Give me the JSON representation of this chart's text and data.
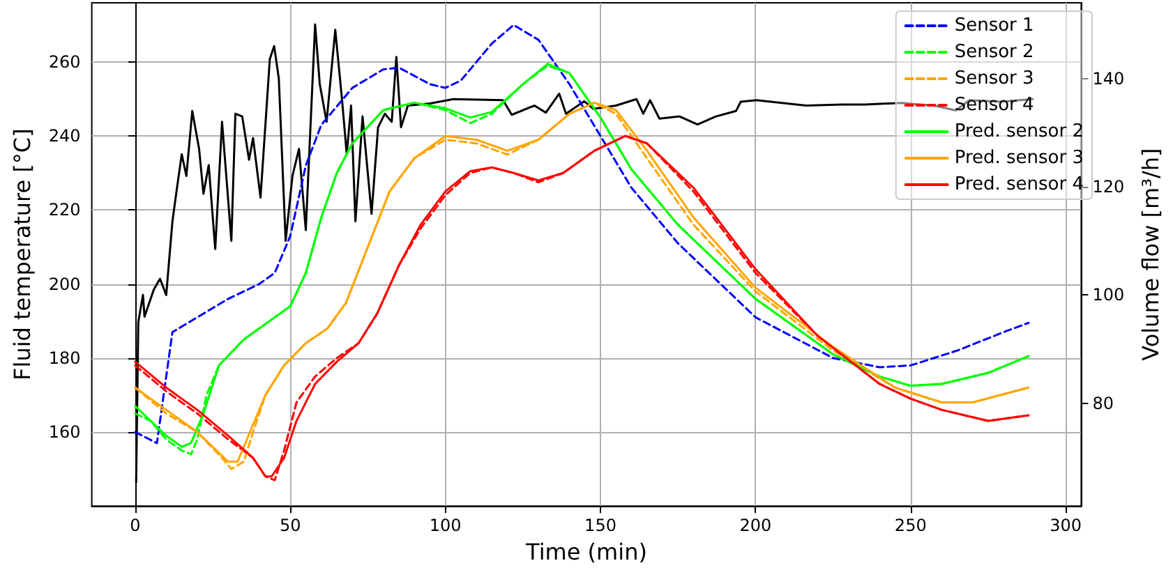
{
  "chart_data": {
    "type": "line",
    "xlabel": "Time (min)",
    "ylabel": "Fluid temperature [°C]",
    "y2label": "Volume flow [m³/h]",
    "xlim": [
      -14,
      305
    ],
    "xticks": [
      0,
      50,
      100,
      150,
      200,
      250,
      300
    ],
    "ylim": [
      140,
      276
    ],
    "yticks": [
      160,
      180,
      200,
      220,
      240,
      260
    ],
    "y2lim": [
      61,
      154
    ],
    "y2ticks": [
      80,
      100,
      120,
      140
    ],
    "grid": true,
    "legend": "top right",
    "series": [
      {
        "name": "Sensor 1",
        "color": "#0000ff",
        "line_style": "dashed",
        "x": [
          0,
          7,
          12,
          20,
          30,
          40,
          45,
          50,
          55,
          60,
          70,
          80,
          85,
          95,
          100,
          105,
          115,
          122,
          130,
          140,
          150,
          160,
          175,
          200,
          225,
          240,
          250,
          265,
          280,
          288
        ],
        "values": [
          160,
          157,
          187,
          191,
          196,
          200,
          203,
          213,
          232,
          243,
          253,
          258,
          258.5,
          254,
          253,
          255,
          265,
          270,
          266,
          254,
          240,
          226,
          211,
          191,
          180,
          177.5,
          178,
          182,
          187,
          189.5
        ]
      },
      {
        "name": "Sensor 2",
        "color": "#00ff00",
        "line_style": "dashed",
        "x": [
          0,
          5,
          10,
          15,
          18,
          20,
          23,
          27,
          35,
          45,
          50,
          55,
          60,
          65,
          70,
          80,
          90,
          100,
          108,
          115,
          125,
          133,
          140,
          150,
          160,
          175,
          200,
          225,
          240,
          250,
          260,
          275,
          288
        ],
        "values": [
          165,
          163,
          158,
          155,
          154,
          158,
          170,
          178,
          185,
          191,
          194,
          203,
          218,
          230,
          238,
          247,
          249,
          247,
          243.5,
          246,
          254,
          259,
          257,
          245,
          231,
          216,
          196,
          181,
          175,
          172.5,
          173,
          176,
          180.5
        ]
      },
      {
        "name": "Sensor 3",
        "color": "#ffa500",
        "line_style": "dashed",
        "x": [
          0,
          10,
          20,
          28,
          31,
          35,
          38,
          42,
          48,
          55,
          62,
          68,
          75,
          82,
          90,
          100,
          110,
          120,
          130,
          140,
          148,
          155,
          165,
          180,
          200,
          225,
          245,
          260,
          270,
          288
        ],
        "values": [
          172,
          165,
          160,
          153,
          150,
          152,
          160,
          170,
          178,
          184,
          188,
          195,
          210,
          225,
          234,
          239,
          238,
          235,
          239,
          246,
          249,
          246,
          234,
          216,
          198,
          182,
          172,
          168,
          168,
          172
        ]
      },
      {
        "name": "Sensor 4",
        "color": "#ff0000",
        "line_style": "dashed",
        "x": [
          0,
          10,
          20,
          30,
          38,
          42,
          45,
          48,
          52,
          58,
          65,
          72,
          78,
          85,
          92,
          100,
          108,
          115,
          122,
          130,
          138,
          148,
          158,
          165,
          180,
          200,
          220,
          240,
          250,
          260,
          275,
          288
        ],
        "values": [
          178,
          171,
          165,
          158,
          153,
          148,
          147,
          155,
          168,
          175,
          180,
          184,
          192,
          205,
          215,
          224,
          230,
          231.5,
          230,
          227.5,
          230,
          236,
          240,
          238,
          225,
          203,
          186,
          173,
          169,
          166,
          163,
          164.5
        ]
      },
      {
        "name": "Pred. sensor 2",
        "color": "#00ff00",
        "line_style": "solid",
        "x": [
          0,
          5,
          10,
          15,
          18,
          22,
          27,
          35,
          45,
          50,
          55,
          60,
          65,
          70,
          80,
          90,
          100,
          108,
          115,
          125,
          133,
          140,
          150,
          160,
          175,
          200,
          225,
          240,
          250,
          260,
          275,
          288
        ],
        "values": [
          167,
          163,
          159,
          156,
          157,
          165,
          178,
          185,
          191,
          194,
          203,
          218,
          230,
          238,
          247,
          249,
          247.5,
          245,
          246.5,
          254,
          259.5,
          257,
          245,
          231,
          216,
          196,
          181,
          175,
          172.5,
          173,
          176,
          180.5
        ]
      },
      {
        "name": "Pred. sensor 3",
        "color": "#ffa500",
        "line_style": "solid",
        "x": [
          0,
          10,
          20,
          30,
          33,
          37,
          42,
          48,
          55,
          62,
          68,
          75,
          82,
          90,
          100,
          110,
          120,
          130,
          140,
          148,
          155,
          165,
          180,
          200,
          225,
          245,
          260,
          270,
          288
        ],
        "values": [
          172,
          166,
          160,
          152,
          152,
          160,
          170,
          178,
          184,
          188,
          195,
          210,
          225,
          234,
          240,
          239,
          236,
          239,
          246,
          249,
          247,
          236,
          218,
          199,
          183,
          172,
          168,
          168,
          172
        ]
      },
      {
        "name": "Pred. sensor 4",
        "color": "#ff0000",
        "line_style": "solid",
        "x": [
          0,
          10,
          20,
          30,
          38,
          42,
          44,
          48,
          52,
          58,
          65,
          72,
          78,
          85,
          92,
          100,
          108,
          115,
          122,
          130,
          138,
          148,
          158,
          165,
          180,
          200,
          220,
          240,
          250,
          260,
          275,
          288
        ],
        "values": [
          179,
          172,
          166,
          159,
          153,
          148,
          148,
          153,
          163,
          173,
          179,
          184,
          192,
          205,
          216,
          225,
          230.5,
          231.5,
          230,
          228,
          230,
          236,
          240,
          238,
          226,
          204,
          186,
          173,
          169,
          166,
          163,
          164.5
        ]
      },
      {
        "color": "#000000",
        "line_style": "solid",
        "axis": "y2",
        "x": [
          0.3,
          1,
          2.5,
          3,
          6,
          8,
          10,
          12,
          13.4,
          15,
          16.5,
          18.4,
          20.6,
          22,
          23.7,
          25.8,
          28,
          31,
          32.3,
          34.5,
          36.7,
          38,
          40.4,
          43.4,
          44.8,
          46.3,
          48.5,
          50.7,
          52.8,
          55,
          58,
          59.5,
          61.7,
          64.5,
          66.7,
          68.2,
          69.6,
          71,
          73.3,
          76.2,
          78.3,
          80.5,
          82.7,
          84.2,
          85.7,
          87.9,
          95,
          100.8,
          102.5,
          118.6,
          121.4,
          128.7,
          132.4,
          136.7,
          138.9,
          144.8,
          147.7,
          155,
          161.6,
          163.8,
          166,
          169,
          175.5,
          181.3,
          187.2,
          193.7,
          195.2,
          200.3,
          216.3,
          228,
          235.4,
          247,
          257.5,
          264.6,
          268.9,
          279,
          289.4
        ],
        "values": [
          65.4,
          95,
          100,
          96,
          101,
          103,
          100,
          113.6,
          119.5,
          126,
          122,
          134,
          127,
          118.7,
          124,
          108.5,
          132,
          110,
          133.5,
          133,
          125,
          129,
          118,
          143.6,
          146,
          140,
          110,
          122,
          127,
          112,
          150,
          139,
          132,
          149,
          136,
          126,
          135,
          113.6,
          133,
          115,
          131,
          133.5,
          132,
          144,
          131,
          135,
          135.4,
          136,
          136.2,
          136,
          133.3,
          135,
          133.7,
          137.2,
          133.5,
          135.8,
          134.4,
          135,
          136.2,
          133.5,
          136,
          132.6,
          133,
          131.5,
          133,
          134,
          135.7,
          136,
          135,
          135.2,
          135.2,
          135.5,
          135,
          134.1,
          136,
          135.7,
          136.2
        ]
      }
    ]
  }
}
